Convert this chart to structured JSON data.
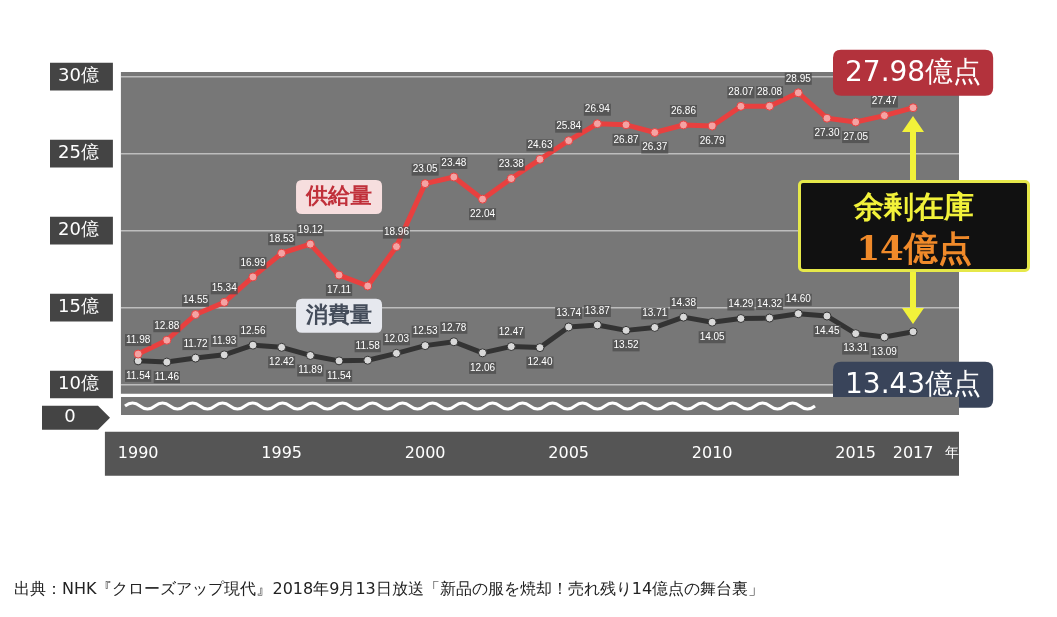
{
  "chart_data": {
    "type": "line",
    "xlabel": "年",
    "x": [
      1990,
      1991,
      1992,
      1993,
      1994,
      1995,
      1996,
      1997,
      1998,
      1999,
      2000,
      2001,
      2002,
      2003,
      2004,
      2005,
      2006,
      2007,
      2008,
      2009,
      2010,
      2011,
      2012,
      2013,
      2014,
      2015,
      2016,
      2017
    ],
    "series": [
      {
        "name": "供給量",
        "color": "#e8403f",
        "values": [
          11.98,
          12.88,
          14.55,
          15.34,
          16.99,
          18.53,
          19.12,
          17.11,
          16.4,
          18.96,
          23.05,
          23.48,
          22.04,
          23.38,
          24.63,
          25.84,
          26.94,
          26.87,
          26.37,
          26.86,
          26.79,
          28.07,
          28.08,
          28.95,
          27.3,
          27.05,
          27.47,
          27.98
        ],
        "value_labels": [
          "11.98",
          "12.88",
          "14.55",
          "15.34",
          "16.99",
          "18.53",
          "19.12",
          "17.11",
          null,
          "18.96",
          "23.05",
          "23.48",
          "22.04",
          "23.38",
          "24.63",
          "25.84",
          "26.94",
          "26.87",
          "26.37",
          "26.86",
          "26.79",
          "28.07",
          "28.08",
          "28.95",
          "27.30",
          "27.05",
          "27.47",
          null
        ]
      },
      {
        "name": "消費量",
        "color": "#333333",
        "values": [
          11.54,
          11.46,
          11.72,
          11.93,
          12.56,
          12.42,
          11.89,
          11.54,
          11.58,
          12.03,
          12.53,
          12.78,
          12.06,
          12.47,
          12.4,
          13.74,
          13.87,
          13.52,
          13.71,
          14.38,
          14.05,
          14.29,
          14.32,
          14.6,
          14.45,
          13.31,
          13.09,
          13.43
        ],
        "value_labels": [
          "11.54",
          "11.46",
          "11.72",
          "11.93",
          "12.56",
          "12.42",
          "11.89",
          "11.54",
          "11.58",
          "12.03",
          "12.53",
          "12.78",
          "12.06",
          "12.47",
          "12.40",
          "13.74",
          "13.87",
          "13.52",
          "13.71",
          "14.38",
          "14.05",
          "14.29",
          "14.32",
          "14.60",
          "14.45",
          "13.31",
          "13.09",
          null
        ]
      }
    ],
    "xlim": [
      1989.4,
      2018.6
    ],
    "xticks": [
      1990,
      1995,
      2000,
      2005,
      2010,
      2015,
      2017
    ],
    "ylim": [
      9.4,
      30.3
    ],
    "yticks": [
      {
        "value": 10,
        "label": "10億"
      },
      {
        "value": 15,
        "label": "15億"
      },
      {
        "value": 20,
        "label": "20億"
      },
      {
        "value": 25,
        "label": "25億"
      },
      {
        "value": 30,
        "label": "30億"
      }
    ],
    "grid": "y",
    "legend": false,
    "marker": "circle",
    "line_style": "solid",
    "annotations": [
      {
        "text": "27.98億点",
        "x": 2017,
        "y": 27.98
      },
      {
        "text": "13.43億点",
        "x": 2017,
        "y": 13.43
      },
      "余剰在庫",
      "14億点",
      "0",
      "出典：NHK『クローズアップ現代』2018年9月13日放送「新品の服を焼却！売れ残り14億点の舞台裏」"
    ]
  }
}
